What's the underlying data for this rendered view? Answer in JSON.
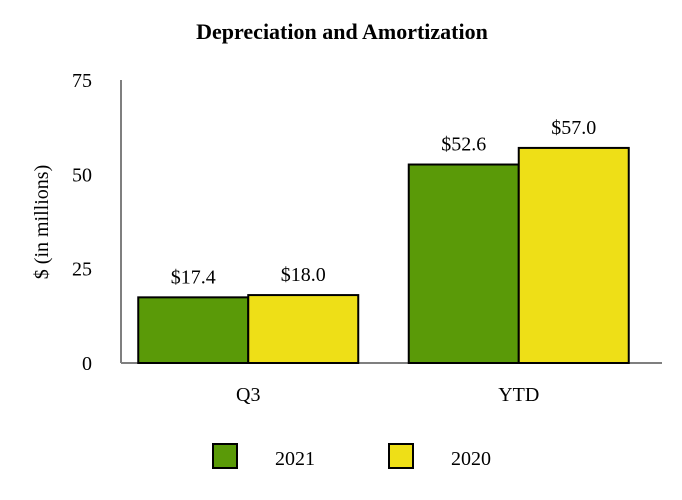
{
  "chart_data": {
    "type": "bar",
    "title": "Depreciation and Amortization",
    "xlabel": "",
    "ylabel": "$ (in millions)",
    "ylim": [
      0,
      75
    ],
    "yticks": [
      0,
      25,
      50,
      75
    ],
    "grid": false,
    "legend_position": "bottom",
    "categories": [
      "Q3",
      "YTD"
    ],
    "series": [
      {
        "name": "2021",
        "values": [
          17.4,
          52.6
        ],
        "labels": [
          "$17.4",
          "$52.6"
        ],
        "color": "#5a9a08"
      },
      {
        "name": "2020",
        "values": [
          18.0,
          57.0
        ],
        "labels": [
          "$18.0",
          "$57.0"
        ],
        "color": "#eedf17"
      }
    ]
  }
}
